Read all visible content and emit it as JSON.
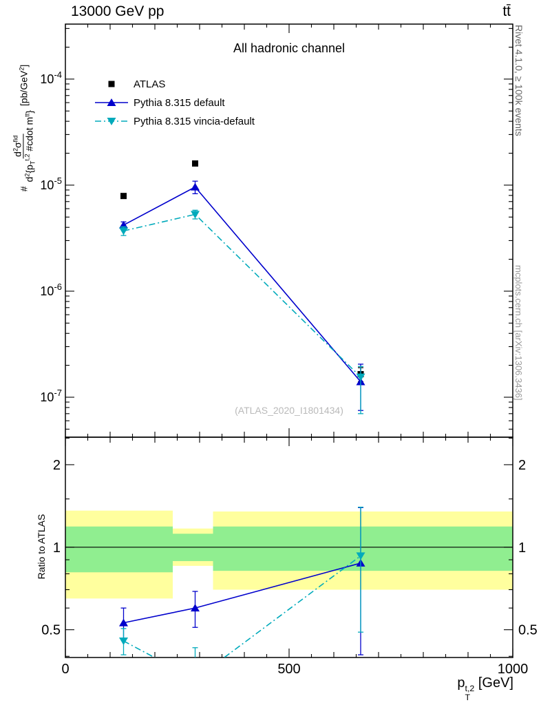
{
  "header": {
    "left_title": "13000 GeV pp",
    "right_title": "tt̄"
  },
  "sidebar_right": {
    "top_caption": "Rivet 4.1.0, ≥ 100k events",
    "bottom_caption": "mcplots.cern.ch [arXiv:1306.3436]"
  },
  "chart_data": {
    "type": "line",
    "title": "All hadronic channel",
    "watermark": "(ATLAS_2020_I1801434)",
    "ratio_ylabel": "Ratio to ATLAS",
    "xlabel": {
      "base": "p",
      "sup": "t,2",
      "sub": "T",
      "unit": " [GeV]"
    },
    "ylabel": {
      "prefix": "#",
      "numerator": [
        [
          "d"
        ],
        [
          "2",
          "sup"
        ],
        [
          "σ"
        ],
        [
          "fid",
          "sup"
        ]
      ],
      "denominator": [
        [
          "d"
        ],
        [
          "2",
          "sup"
        ],
        [
          "{p"
        ],
        [
          "T",
          "sub"
        ],
        [
          "t,2",
          "sup"
        ],
        [
          " #cdot m"
        ],
        [
          "tt",
          "sup"
        ],
        [
          "}"
        ]
      ],
      "unit": [
        [
          " [pb/GeV"
        ],
        [
          "2",
          "sup"
        ],
        [
          "]"
        ]
      ]
    },
    "xlim": [
      0,
      1000
    ],
    "xticks": [
      0,
      500,
      1000
    ],
    "main_panel": {
      "yscale": "log",
      "ylim": [
        4.2e-08,
        0.00033
      ],
      "ytick_exponents": [
        -4,
        -5,
        -6,
        -7
      ],
      "series": [
        {
          "name": "ATLAS",
          "color": "#000000",
          "marker": "square",
          "line": "none",
          "x": [
            130,
            290,
            660
          ],
          "y": [
            7.9e-06,
            1.6e-05,
            1.65e-07
          ],
          "yerr_lo": [
            0,
            0,
            2.5e-08
          ],
          "yerr_hi": [
            0,
            0,
            2.5e-08
          ]
        },
        {
          "name": "Pythia 8.315 default",
          "color": "#0000CC",
          "marker": "triangle-up",
          "line": "solid",
          "x": [
            130,
            290,
            660
          ],
          "y": [
            4.2e-06,
            9.6e-06,
            1.4e-07
          ],
          "yerr_lo": [
            3e-07,
            1.3e-06,
            6.5e-08
          ],
          "yerr_hi": [
            3e-07,
            1.3e-06,
            6.5e-08
          ]
        },
        {
          "name": "Pythia 8.315 vincia-default",
          "color": "#00AABB",
          "marker": "triangle-down",
          "line": "dashdot",
          "x": [
            130,
            290,
            660
          ],
          "y": [
            3.7e-06,
            5.3e-06,
            1.55e-07
          ],
          "yerr_lo": [
            3.5e-07,
            5e-07,
            8.5e-08
          ],
          "yerr_hi": [
            3.5e-07,
            5e-07,
            4e-08
          ]
        }
      ]
    },
    "ratio_panel": {
      "yscale": "log",
      "ylim": [
        0.396,
        2.52
      ],
      "yticks": [
        0.5,
        1,
        2
      ],
      "reference_line": 1,
      "band_colors": {
        "outer": "#FFFF9E",
        "inner": "#90EE90"
      },
      "bands": [
        {
          "x0": 0,
          "x1": 240,
          "outer": [
            0.65,
            1.36
          ],
          "inner": [
            0.81,
            1.19
          ]
        },
        {
          "x0": 240,
          "x1": 330,
          "outer": [
            0.855,
            1.17
          ],
          "inner": [
            0.89,
            1.12
          ]
        },
        {
          "x0": 330,
          "x1": 1000,
          "outer": [
            0.7,
            1.35
          ],
          "inner": [
            0.82,
            1.19
          ]
        }
      ],
      "series": [
        {
          "name": "Pythia 8.315 default",
          "color": "#0000CC",
          "marker": "triangle-up",
          "line": "solid",
          "x": [
            130,
            290,
            660
          ],
          "y": [
            0.53,
            0.6,
            0.875
          ],
          "yerr_lo": [
            0.07,
            0.09,
            0.47
          ],
          "yerr_hi": [
            0.07,
            0.09,
            0.52
          ]
        },
        {
          "name": "Pythia 8.315 vincia-default",
          "color": "#00AABB",
          "marker": "triangle-down",
          "line": "dashdot",
          "x": [
            130,
            290,
            660
          ],
          "y": [
            0.455,
            0.33,
            0.93
          ],
          "yerr_lo": [
            0.05,
            0.1,
            0.44
          ],
          "yerr_hi": [
            0.05,
            0.1,
            0.47
          ]
        }
      ]
    },
    "legend": {
      "items": [
        "ATLAS",
        "Pythia 8.315 default",
        "Pythia 8.315 vincia-default"
      ]
    }
  }
}
